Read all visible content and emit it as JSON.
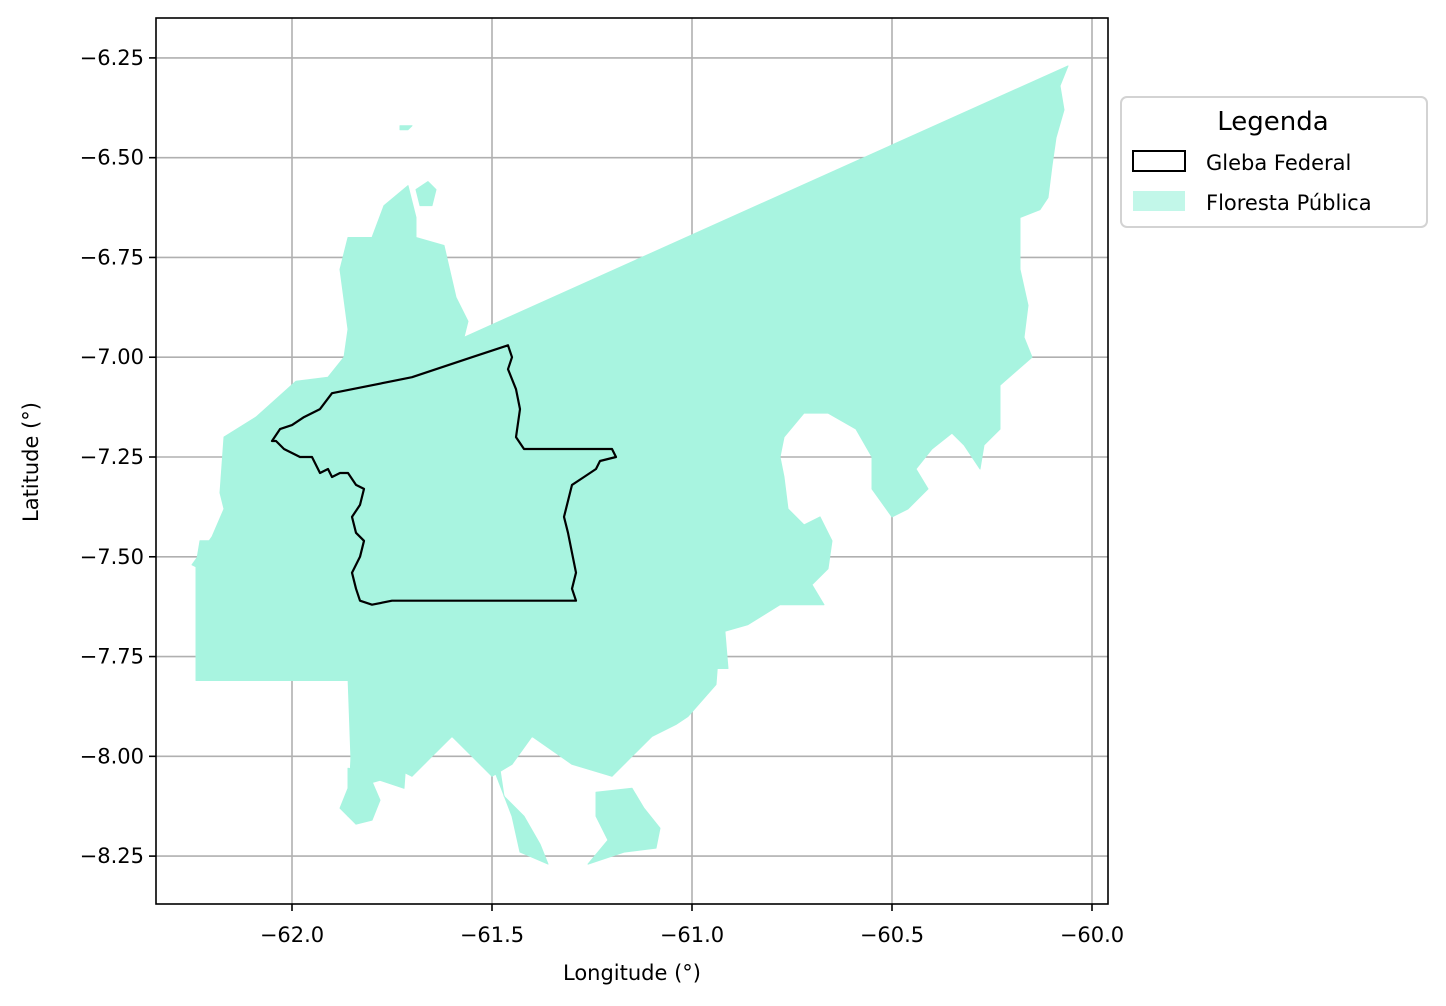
{
  "chart_data": {
    "type": "map",
    "xlabel": "Longitude (°)",
    "ylabel": "Latitude (°)",
    "xlim": [
      -62.34,
      -59.96
    ],
    "ylim": [
      -8.37,
      -6.15
    ],
    "xticks": [
      -62.0,
      -61.5,
      -61.0,
      -60.5,
      -60.0
    ],
    "xtick_labels": [
      "−62.0",
      "−61.5",
      "−61.0",
      "−60.5",
      "−60.0"
    ],
    "yticks": [
      -6.25,
      -6.5,
      -6.75,
      -7.0,
      -7.25,
      -7.5,
      -7.75,
      -8.0,
      -8.25
    ],
    "ytick_labels": [
      "−6.25",
      "−6.50",
      "−6.75",
      "−7.00",
      "−7.25",
      "−7.50",
      "−7.75",
      "−8.00",
      "−8.25"
    ],
    "grid": true,
    "legend": {
      "title": "Legenda",
      "position": "outside-upper-right",
      "entries": [
        {
          "label": "Gleba Federal",
          "style": "outline",
          "color": "#000000"
        },
        {
          "label": "Floresta Pública",
          "style": "fill",
          "color": "#a8f4e0"
        }
      ]
    },
    "layers": [
      {
        "name": "Floresta Pública",
        "color": "#a8f4e0",
        "polygons": [
          [
            [
              -61.86,
              -6.93
            ],
            [
              -61.88,
              -6.78
            ],
            [
              -61.86,
              -6.7
            ],
            [
              -61.8,
              -6.7
            ],
            [
              -61.77,
              -6.62
            ],
            [
              -61.71,
              -6.57
            ],
            [
              -61.69,
              -6.65
            ],
            [
              -61.69,
              -6.7
            ],
            [
              -61.62,
              -6.72
            ],
            [
              -61.59,
              -6.85
            ],
            [
              -61.56,
              -6.91
            ],
            [
              -61.57,
              -6.95
            ],
            [
              -60.06,
              -6.27
            ],
            [
              -60.08,
              -6.32
            ],
            [
              -60.07,
              -6.38
            ],
            [
              -60.09,
              -6.45
            ],
            [
              -60.1,
              -6.52
            ],
            [
              -60.11,
              -6.6
            ],
            [
              -60.13,
              -6.63
            ],
            [
              -60.18,
              -6.65
            ],
            [
              -60.18,
              -6.78
            ],
            [
              -60.16,
              -6.87
            ],
            [
              -60.17,
              -6.95
            ],
            [
              -60.15,
              -7.0
            ],
            [
              -60.23,
              -7.07
            ],
            [
              -60.23,
              -7.18
            ],
            [
              -60.27,
              -7.22
            ],
            [
              -60.28,
              -7.28
            ],
            [
              -60.32,
              -7.22
            ],
            [
              -60.35,
              -7.19
            ],
            [
              -60.4,
              -7.23
            ],
            [
              -60.44,
              -7.28
            ],
            [
              -60.41,
              -7.33
            ],
            [
              -60.46,
              -7.38
            ],
            [
              -60.5,
              -7.4
            ],
            [
              -60.55,
              -7.33
            ],
            [
              -60.55,
              -7.25
            ],
            [
              -60.59,
              -7.18
            ],
            [
              -60.66,
              -7.14
            ],
            [
              -60.72,
              -7.14
            ],
            [
              -60.77,
              -7.2
            ],
            [
              -60.78,
              -7.25
            ],
            [
              -60.77,
              -7.3
            ],
            [
              -60.76,
              -7.38
            ],
            [
              -60.72,
              -7.42
            ],
            [
              -60.68,
              -7.4
            ],
            [
              -60.65,
              -7.46
            ],
            [
              -60.66,
              -7.53
            ],
            [
              -60.7,
              -7.57
            ],
            [
              -60.67,
              -7.62
            ],
            [
              -60.78,
              -7.62
            ],
            [
              -60.86,
              -7.67
            ],
            [
              -60.93,
              -7.69
            ],
            [
              -60.94,
              -7.82
            ],
            [
              -61.01,
              -7.9
            ],
            [
              -61.04,
              -7.92
            ],
            [
              -61.1,
              -7.95
            ],
            [
              -61.15,
              -8.0
            ],
            [
              -61.2,
              -8.05
            ],
            [
              -61.3,
              -8.02
            ],
            [
              -61.4,
              -7.95
            ],
            [
              -61.45,
              -8.02
            ],
            [
              -61.5,
              -8.05
            ],
            [
              -61.55,
              -8.0
            ],
            [
              -61.6,
              -7.95
            ],
            [
              -61.65,
              -8.0
            ],
            [
              -61.7,
              -8.05
            ],
            [
              -61.76,
              -8.02
            ],
            [
              -61.82,
              -8.08
            ],
            [
              -61.86,
              -8.15
            ],
            [
              -61.85,
              -7.95
            ],
            [
              -61.83,
              -7.81
            ],
            [
              -62.17,
              -7.81
            ],
            [
              -62.19,
              -7.76
            ],
            [
              -62.22,
              -7.68
            ],
            [
              -62.23,
              -7.63
            ],
            [
              -62.23,
              -7.53
            ],
            [
              -62.25,
              -7.52
            ],
            [
              -62.2,
              -7.45
            ],
            [
              -62.17,
              -7.38
            ],
            [
              -62.18,
              -7.34
            ],
            [
              -62.17,
              -7.2
            ],
            [
              -62.09,
              -7.15
            ],
            [
              -61.99,
              -7.06
            ],
            [
              -61.91,
              -7.05
            ],
            [
              -61.87,
              -7.0
            ]
          ],
          [
            [
              -62.24,
              -7.52
            ],
            [
              -62.23,
              -7.46
            ],
            [
              -62.18,
              -7.46
            ],
            [
              -62.17,
              -7.81
            ],
            [
              -62.24,
              -7.81
            ]
          ],
          [
            [
              -61.86,
              -7.8
            ],
            [
              -61.85,
              -8.08
            ],
            [
              -61.78,
              -8.06
            ],
            [
              -61.72,
              -8.08
            ],
            [
              -61.7,
              -7.8
            ]
          ],
          [
            [
              -61.5,
              -7.9
            ],
            [
              -61.47,
              -8.1
            ],
            [
              -61.42,
              -8.15
            ],
            [
              -61.38,
              -8.22
            ],
            [
              -61.36,
              -8.27
            ],
            [
              -61.43,
              -8.24
            ],
            [
              -61.45,
              -8.15
            ],
            [
              -61.5,
              -8.02
            ]
          ],
          [
            [
              -61.86,
              -8.03
            ],
            [
              -61.81,
              -8.04
            ],
            [
              -61.78,
              -8.11
            ],
            [
              -61.8,
              -8.16
            ],
            [
              -61.84,
              -8.17
            ],
            [
              -61.88,
              -8.13
            ],
            [
              -61.86,
              -8.08
            ]
          ],
          [
            [
              -61.24,
              -8.09
            ],
            [
              -61.15,
              -8.08
            ],
            [
              -61.12,
              -8.13
            ],
            [
              -61.08,
              -8.18
            ],
            [
              -61.09,
              -8.23
            ],
            [
              -61.17,
              -8.24
            ],
            [
              -61.26,
              -8.27
            ],
            [
              -61.21,
              -8.21
            ],
            [
              -61.24,
              -8.15
            ]
          ],
          [
            [
              -60.96,
              -7.66
            ],
            [
              -60.92,
              -7.66
            ],
            [
              -60.91,
              -7.78
            ],
            [
              -60.96,
              -7.78
            ]
          ],
          [
            [
              -61.66,
              -6.56
            ],
            [
              -61.64,
              -6.58
            ],
            [
              -61.65,
              -6.62
            ],
            [
              -61.68,
              -6.62
            ],
            [
              -61.69,
              -6.58
            ]
          ],
          [
            [
              -61.73,
              -6.42
            ],
            [
              -61.7,
              -6.42
            ],
            [
              -61.71,
              -6.43
            ],
            [
              -61.73,
              -6.43
            ]
          ]
        ]
      },
      {
        "name": "Gleba Federal",
        "color": "#000000",
        "polygons": [
          [
            [
              -62.04,
              -7.21
            ],
            [
              -62.02,
              -7.23
            ],
            [
              -61.98,
              -7.25
            ],
            [
              -61.95,
              -7.25
            ],
            [
              -61.94,
              -7.27
            ],
            [
              -61.93,
              -7.29
            ],
            [
              -61.91,
              -7.28
            ],
            [
              -61.9,
              -7.3
            ],
            [
              -61.88,
              -7.29
            ],
            [
              -61.86,
              -7.29
            ],
            [
              -61.84,
              -7.32
            ],
            [
              -61.82,
              -7.33
            ],
            [
              -61.83,
              -7.37
            ],
            [
              -61.85,
              -7.4
            ],
            [
              -61.84,
              -7.44
            ],
            [
              -61.82,
              -7.46
            ],
            [
              -61.83,
              -7.5
            ],
            [
              -61.85,
              -7.54
            ],
            [
              -61.84,
              -7.58
            ],
            [
              -61.83,
              -7.61
            ],
            [
              -61.8,
              -7.62
            ],
            [
              -61.75,
              -7.61
            ],
            [
              -61.65,
              -7.61
            ],
            [
              -61.5,
              -7.61
            ],
            [
              -61.29,
              -7.61
            ],
            [
              -61.3,
              -7.58
            ],
            [
              -61.29,
              -7.54
            ],
            [
              -61.3,
              -7.49
            ],
            [
              -61.31,
              -7.44
            ],
            [
              -61.32,
              -7.4
            ],
            [
              -61.31,
              -7.36
            ],
            [
              -61.3,
              -7.32
            ],
            [
              -61.27,
              -7.3
            ],
            [
              -61.24,
              -7.28
            ],
            [
              -61.23,
              -7.26
            ],
            [
              -61.19,
              -7.25
            ],
            [
              -61.2,
              -7.23
            ],
            [
              -61.33,
              -7.23
            ],
            [
              -61.42,
              -7.23
            ],
            [
              -61.44,
              -7.2
            ],
            [
              -61.43,
              -7.13
            ],
            [
              -61.44,
              -7.08
            ],
            [
              -61.46,
              -7.03
            ],
            [
              -61.45,
              -7.0
            ],
            [
              -61.46,
              -6.97
            ],
            [
              -61.55,
              -7.0
            ],
            [
              -61.7,
              -7.05
            ],
            [
              -61.9,
              -7.09
            ],
            [
              -61.93,
              -7.13
            ],
            [
              -61.97,
              -7.15
            ],
            [
              -62.0,
              -7.17
            ],
            [
              -62.03,
              -7.18
            ],
            [
              -62.05,
              -7.21
            ]
          ]
        ]
      }
    ]
  }
}
